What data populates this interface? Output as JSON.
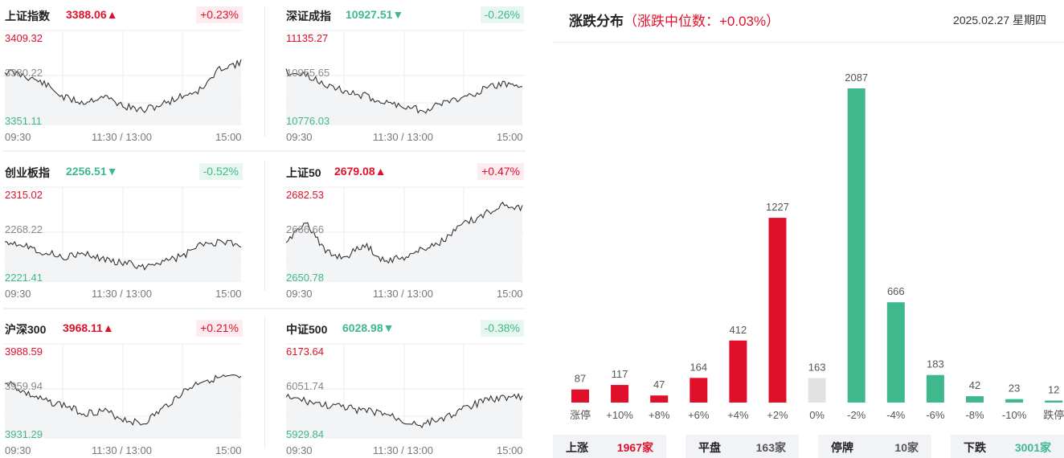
{
  "colors": {
    "up": "#e0102b",
    "down": "#3fb88e",
    "flat": "#e2e2e2",
    "line": "#333333"
  },
  "indices": [
    {
      "name": "上证指数",
      "price": "3388.06▲",
      "dir": "up",
      "change": "+0.23%",
      "y_high": "3409.32",
      "y_mid": "3380.22",
      "y_low": "3351.11",
      "x_start": "09:30",
      "x_mid": "11:30 / 13:00",
      "x_end": "15:00"
    },
    {
      "name": "深证成指",
      "price": "10927.51▼",
      "dir": "down",
      "change": "-0.26%",
      "y_high": "11135.27",
      "y_mid": "10955.65",
      "y_low": "10776.03",
      "x_start": "09:30",
      "x_mid": "11:30 / 13:00",
      "x_end": "15:00"
    },
    {
      "name": "创业板指",
      "price": "2256.51▼",
      "dir": "down",
      "change": "-0.52%",
      "y_high": "2315.02",
      "y_mid": "2268.22",
      "y_low": "2221.41",
      "x_start": "09:30",
      "x_mid": "11:30 / 13:00",
      "x_end": "15:00"
    },
    {
      "name": "上证50",
      "price": "2679.08▲",
      "dir": "up",
      "change": "+0.47%",
      "y_high": "2682.53",
      "y_mid": "2666.66",
      "y_low": "2650.78",
      "x_start": "09:30",
      "x_mid": "11:30 / 13:00",
      "x_end": "15:00"
    },
    {
      "name": "沪深300",
      "price": "3968.11▲",
      "dir": "up",
      "change": "+0.21%",
      "y_high": "3988.59",
      "y_mid": "3959.94",
      "y_low": "3931.29",
      "x_start": "09:30",
      "x_mid": "11:30 / 13:00",
      "x_end": "15:00"
    },
    {
      "name": "中证500",
      "price": "6028.98▼",
      "dir": "down",
      "change": "-0.38%",
      "y_high": "6173.64",
      "y_mid": "6051.74",
      "y_low": "5929.84",
      "x_start": "09:30",
      "x_mid": "11:30 / 13:00",
      "x_end": "15:00"
    }
  ],
  "distribution": {
    "title": "涨跌分布",
    "subtitle": "（涨跌中位数：+0.03%）",
    "date": "2025.02.27 星期四"
  },
  "chart_data": {
    "type": "bar",
    "categories": [
      "涨停",
      "+10%",
      "+8%",
      "+6%",
      "+4%",
      "+2%",
      "0%",
      "-2%",
      "-4%",
      "-6%",
      "-8%",
      "-10%",
      "跌停"
    ],
    "values": [
      87,
      117,
      47,
      164,
      412,
      1227,
      163,
      2087,
      666,
      183,
      42,
      23,
      12
    ],
    "value_labels": [
      "87",
      "117",
      "47",
      "164",
      "412",
      "1227",
      "163",
      "2087",
      "666",
      "183",
      "42",
      "23",
      "12"
    ],
    "bar_colors": [
      "up",
      "up",
      "up",
      "up",
      "up",
      "up",
      "flat",
      "down",
      "down",
      "down",
      "down",
      "down",
      "down"
    ],
    "ylim": [
      0,
      2087
    ]
  },
  "summary": [
    {
      "label": "上涨",
      "value": "1967家",
      "dir": "up"
    },
    {
      "label": "平盘",
      "value": "163家",
      "dir": "neutral"
    },
    {
      "label": "停牌",
      "value": "10家",
      "dir": "neutral"
    },
    {
      "label": "下跌",
      "value": "3001家",
      "dir": "down"
    }
  ]
}
